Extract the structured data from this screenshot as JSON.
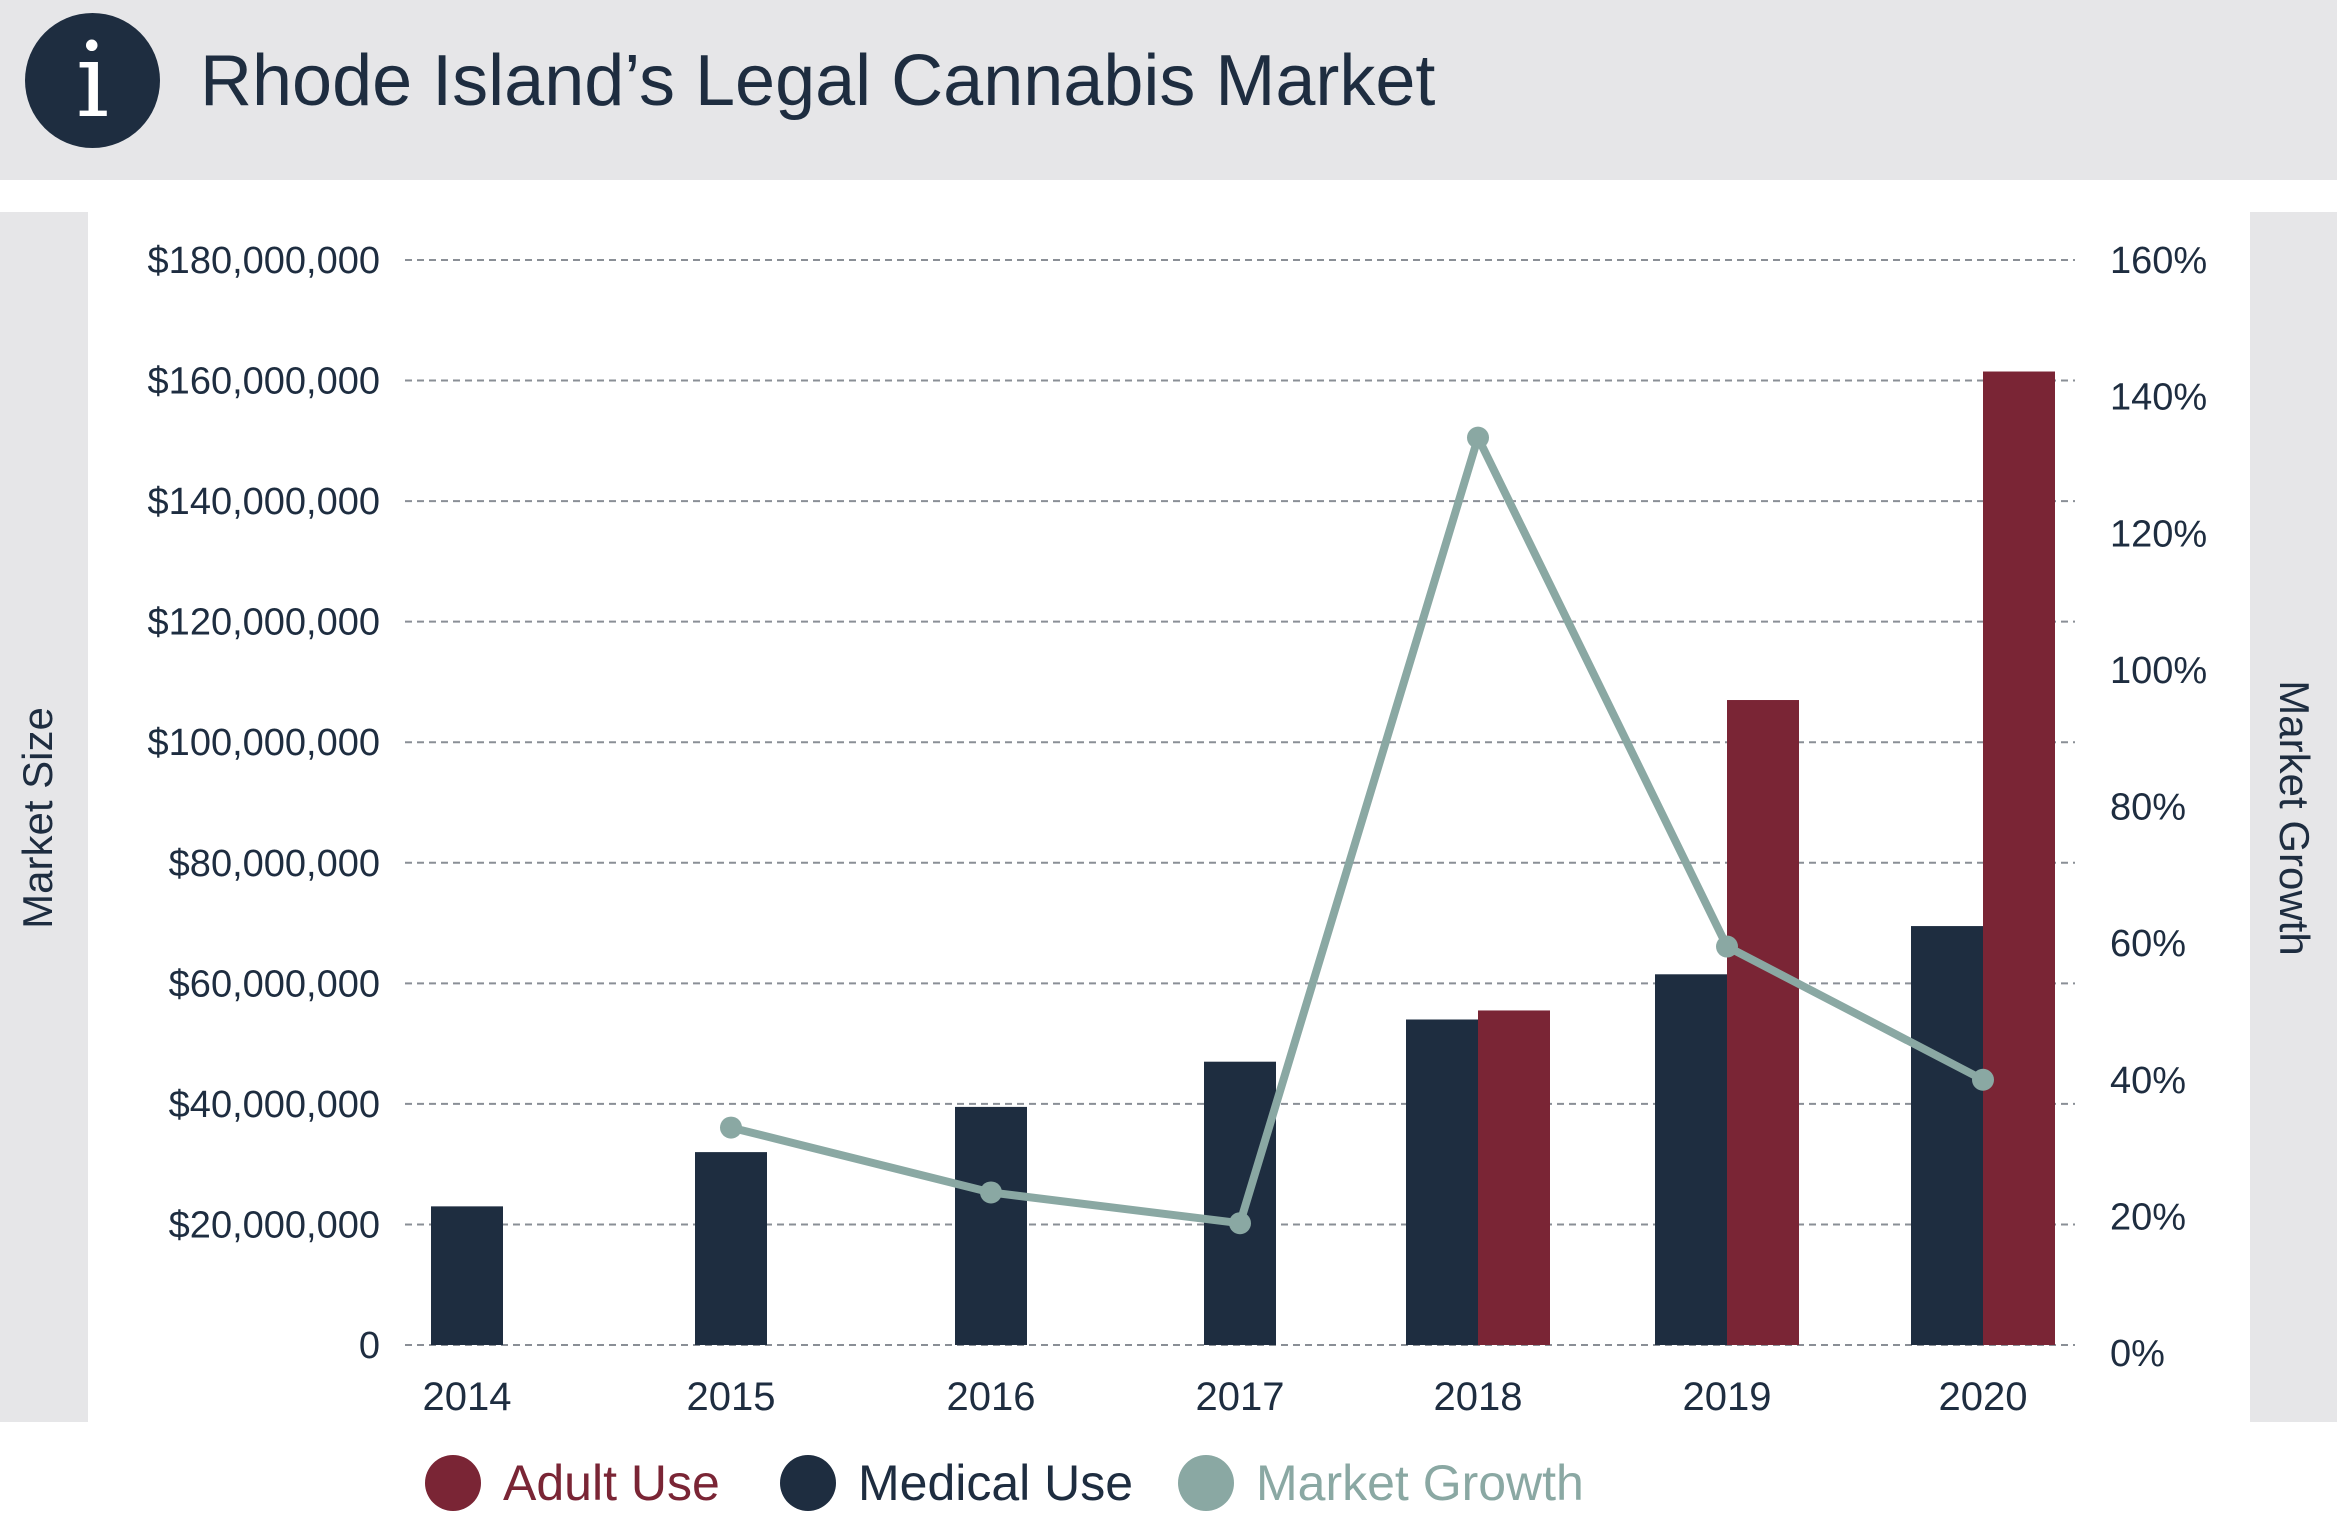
{
  "header": {
    "icon": "info-icon",
    "title": "Rhode Island’s Legal Cannabis Market"
  },
  "colors": {
    "adult": "#7a2535",
    "medical": "#1e2d40",
    "growth": "#8aa8a3",
    "header_bg": "#e6e6e8",
    "grid": "#8a8f96",
    "text": "#1e2d40"
  },
  "chart_data": {
    "type": "bar",
    "title": "Rhode Island’s Legal Cannabis Market",
    "categories": [
      "2014",
      "2015",
      "2016",
      "2017",
      "2018",
      "2019",
      "2020"
    ],
    "series": [
      {
        "name": "Medical Use",
        "kind": "bar",
        "axis": "left",
        "values": [
          23000000,
          32000000,
          39500000,
          47000000,
          54000000,
          61500000,
          69500000
        ]
      },
      {
        "name": "Adult Use",
        "kind": "bar",
        "axis": "left",
        "values": [
          null,
          null,
          null,
          null,
          55500000,
          107000000,
          161500000
        ]
      },
      {
        "name": "Market Growth",
        "kind": "line",
        "axis": "right",
        "values": [
          null,
          33,
          23.5,
          19,
          134,
          59.5,
          40
        ]
      }
    ],
    "ylabel": "Market Size",
    "y2label": "Market Growth",
    "ylim": [
      0,
      180000000
    ],
    "y2lim": [
      0,
      160
    ],
    "y_ticks": [
      "0",
      "$20,000,000",
      "$40,000,000",
      "$60,000,000",
      "$80,000,000",
      "$100,000,000",
      "$120,000,000",
      "$140,000,000",
      "$160,000,000",
      "$180,000,000"
    ],
    "y2_ticks": [
      "0%",
      "20%",
      "40%",
      "60%",
      "80%",
      "100%",
      "120%",
      "140%",
      "160%"
    ],
    "grid": true,
    "legend_position": "bottom",
    "legend": [
      "Adult Use",
      "Medical Use",
      "Market Growth"
    ]
  }
}
